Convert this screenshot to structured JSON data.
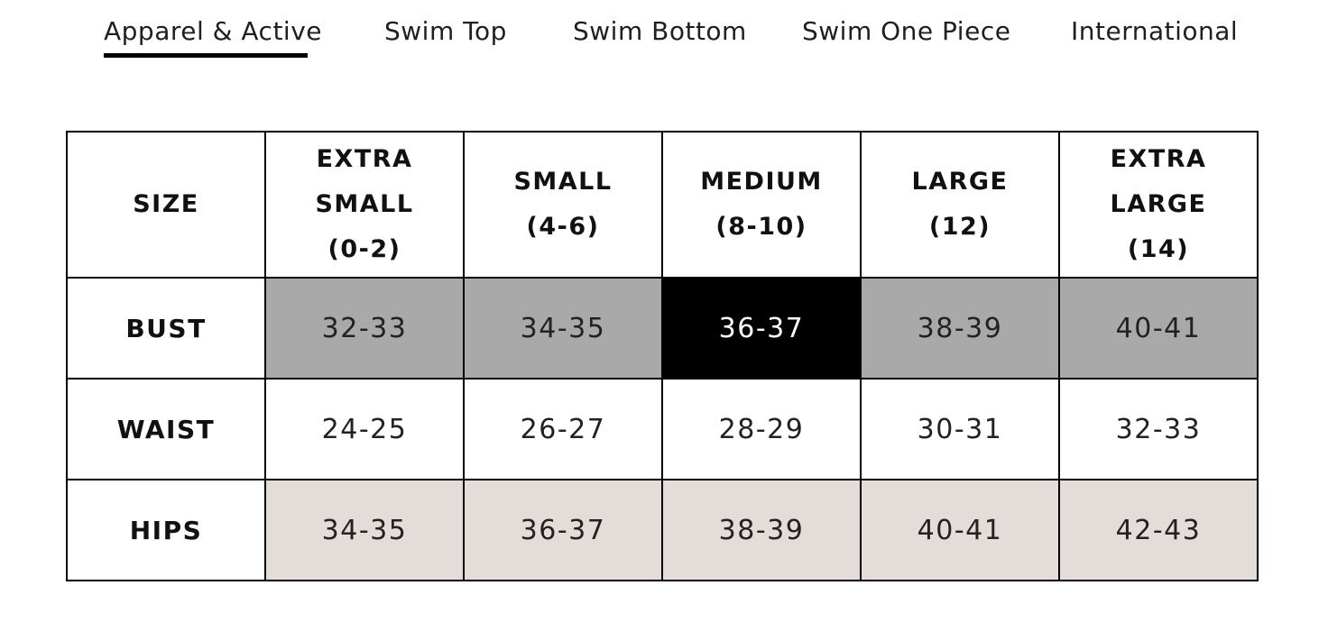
{
  "tabs": [
    {
      "label": "Apparel & Active",
      "active": true
    },
    {
      "label": "Swim Top",
      "active": false
    },
    {
      "label": "Swim Bottom",
      "active": false
    },
    {
      "label": "Swim One Piece",
      "active": false
    },
    {
      "label": "International",
      "active": false
    }
  ],
  "table": {
    "corner_label": "SIZE",
    "columns": [
      {
        "name": "EXTRA SMALL",
        "range": "(0-2)"
      },
      {
        "name": "SMALL",
        "range": "(4-6)"
      },
      {
        "name": "MEDIUM",
        "range": "(8-10)"
      },
      {
        "name": "LARGE",
        "range": "(12)"
      },
      {
        "name": "EXTRA LARGE",
        "range": "(14)"
      }
    ],
    "rows": [
      {
        "label": "BUST",
        "values": [
          "32-33",
          "34-35",
          "36-37",
          "38-39",
          "40-41"
        ],
        "highlighted_index": 2
      },
      {
        "label": "WAIST",
        "values": [
          "24-25",
          "26-27",
          "28-29",
          "30-31",
          "32-33"
        ]
      },
      {
        "label": "HIPS",
        "values": [
          "34-35",
          "36-37",
          "38-39",
          "40-41",
          "42-43"
        ]
      }
    ]
  },
  "colors": {
    "bust_row": "#a9a9a9",
    "highlight_cell": "#000000",
    "hips_row": "#e3dcd8",
    "border": "#000000"
  }
}
